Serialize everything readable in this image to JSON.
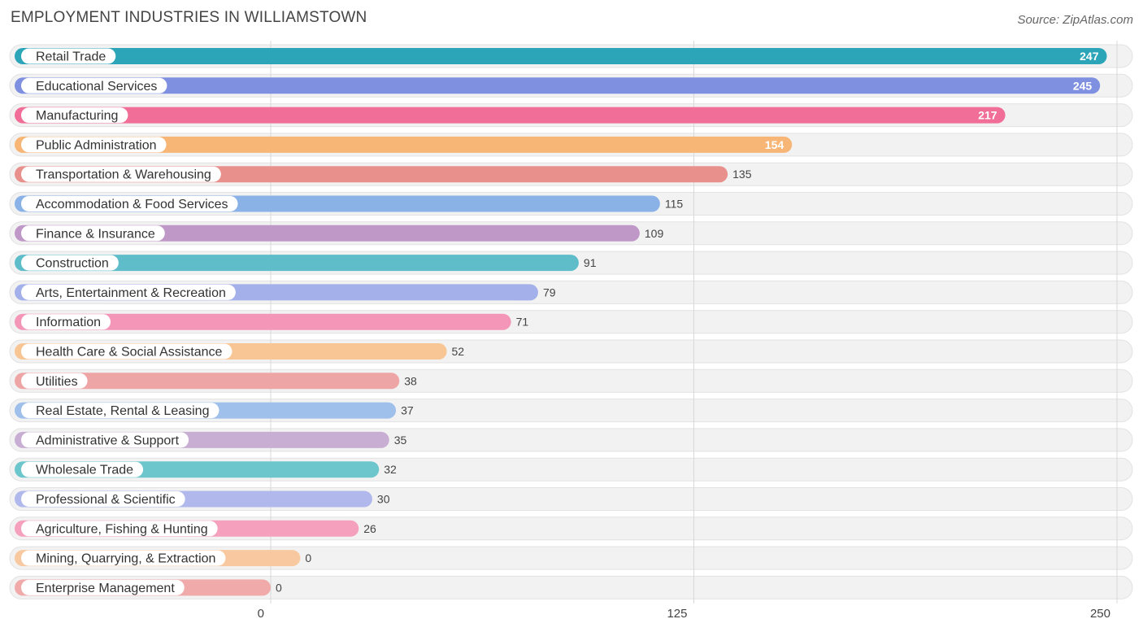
{
  "header": {
    "title": "EMPLOYMENT INDUSTRIES IN WILLIAMSTOWN",
    "source": "Source: ZipAtlas.com"
  },
  "chart_data": {
    "type": "bar",
    "orientation": "horizontal",
    "title": "EMPLOYMENT INDUSTRIES IN WILLIAMSTOWN",
    "xlabel": "",
    "ylabel": "",
    "xlim": [
      0,
      250
    ],
    "x_ticks": [
      "0",
      "125",
      "250"
    ],
    "grid": true,
    "categories": [
      "Retail Trade",
      "Educational Services",
      "Manufacturing",
      "Public Administration",
      "Transportation & Warehousing",
      "Accommodation & Food Services",
      "Finance & Insurance",
      "Construction",
      "Arts, Entertainment & Recreation",
      "Information",
      "Health Care & Social Assistance",
      "Utilities",
      "Real Estate, Rental & Leasing",
      "Administrative & Support",
      "Wholesale Trade",
      "Professional & Scientific",
      "Agriculture, Fishing & Hunting",
      "Mining, Quarrying, & Extraction",
      "Enterprise Management"
    ],
    "values": [
      247,
      245,
      217,
      154,
      135,
      115,
      109,
      91,
      79,
      71,
      52,
      38,
      37,
      35,
      32,
      30,
      26,
      0,
      0
    ],
    "colors": [
      "#2ca5b8",
      "#8090e0",
      "#f06e98",
      "#f7b576",
      "#e8918c",
      "#8ab2e6",
      "#c098c8",
      "#5fbcc9",
      "#a4b0ea",
      "#f496b8",
      "#f8c594",
      "#eea5a5",
      "#9ec0ea",
      "#c9aed4",
      "#6cc6cc",
      "#b0b8ec",
      "#f5a0bc",
      "#f8c9a0",
      "#f0aaaa"
    ]
  }
}
